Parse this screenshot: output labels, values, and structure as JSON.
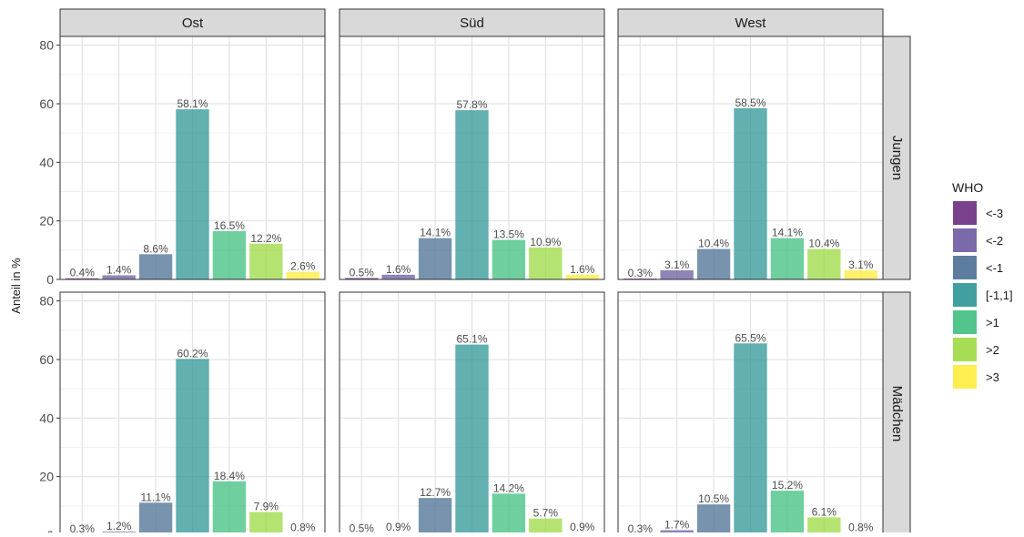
{
  "chart_data": {
    "type": "bar",
    "ylabel": "Anteil in %",
    "ylim": [
      0,
      83
    ],
    "yticks": [
      0,
      20,
      40,
      60,
      80
    ],
    "grid": true,
    "legend_position": "right",
    "legend_title": "WHO",
    "categories": [
      "<-3",
      "<-2",
      "<-1",
      "[-1,1]",
      ">1",
      ">2",
      ">3"
    ],
    "colors": [
      "#6a2c7e",
      "#6b5aa0",
      "#4a6f93",
      "#2e9595",
      "#3fbf7f",
      "#9cd943",
      "#ffec3d"
    ],
    "columns": [
      "Ost",
      "Süd",
      "West"
    ],
    "rows": [
      "Jungen",
      "Mädchen"
    ],
    "panels": [
      {
        "column": "Ost",
        "row": "Jungen",
        "values": [
          0.4,
          1.4,
          8.6,
          58.1,
          16.5,
          12.2,
          2.6
        ],
        "labels": [
          "0.4%",
          "1.4%",
          "8.6%",
          "58.1%",
          "16.5%",
          "12.2%",
          "2.6%"
        ]
      },
      {
        "column": "Süd",
        "row": "Jungen",
        "values": [
          0.5,
          1.6,
          14.1,
          57.8,
          13.5,
          10.9,
          1.6
        ],
        "labels": [
          "0.5%",
          "1.6%",
          "14.1%",
          "57.8%",
          "13.5%",
          "10.9%",
          "1.6%"
        ]
      },
      {
        "column": "West",
        "row": "Jungen",
        "values": [
          0.3,
          3.1,
          10.4,
          58.5,
          14.1,
          10.4,
          3.1
        ],
        "labels": [
          "0.3%",
          "3.1%",
          "10.4%",
          "58.5%",
          "14.1%",
          "10.4%",
          "3.1%"
        ]
      },
      {
        "column": "Ost",
        "row": "Mädchen",
        "values": [
          0.3,
          1.2,
          11.1,
          60.2,
          18.4,
          7.9,
          0.8
        ],
        "labels": [
          "0.3%",
          "1.2%",
          "11.1%",
          "60.2%",
          "18.4%",
          "7.9%",
          "0.8%"
        ]
      },
      {
        "column": "Süd",
        "row": "Mädchen",
        "values": [
          0.5,
          0.9,
          12.7,
          65.1,
          14.2,
          5.7,
          0.9
        ],
        "labels": [
          "0.5%",
          "0.9%",
          "12.7%",
          "65.1%",
          "14.2%",
          "5.7%",
          "0.9%"
        ]
      },
      {
        "column": "West",
        "row": "Mädchen",
        "values": [
          0.3,
          1.7,
          10.5,
          65.5,
          15.2,
          6.1,
          0.8
        ],
        "labels": [
          "0.3%",
          "1.7%",
          "10.5%",
          "65.5%",
          "15.2%",
          "6.1%",
          "0.8%"
        ]
      }
    ]
  }
}
